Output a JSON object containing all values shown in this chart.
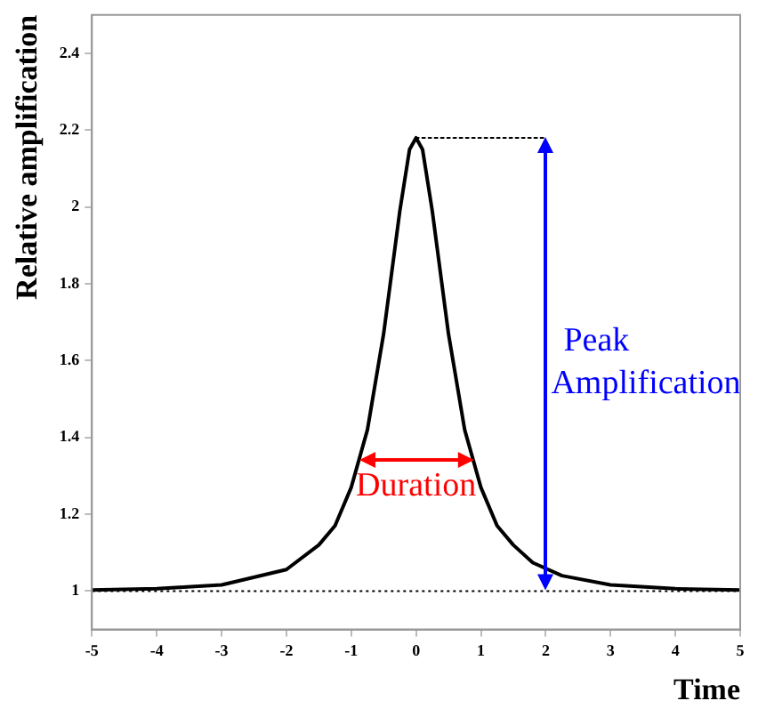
{
  "chart_data": {
    "type": "line",
    "xlabel": "Time",
    "ylabel": "Relative amplification",
    "x": [
      -5,
      -4,
      -3,
      -2,
      -1.5,
      -1.25,
      -1,
      -0.75,
      -0.5,
      -0.25,
      -0.1,
      0,
      0.1,
      0.25,
      0.5,
      0.75,
      1,
      1.25,
      1.5,
      1.8,
      2.25,
      3,
      4,
      5
    ],
    "series": [
      {
        "color": "#000000",
        "values": [
          1.003,
          1.006,
          1.016,
          1.056,
          1.12,
          1.17,
          1.27,
          1.42,
          1.67,
          1.99,
          2.15,
          2.18,
          2.15,
          1.99,
          1.67,
          1.42,
          1.27,
          1.17,
          1.12,
          1.074,
          1.04,
          1.016,
          1.006,
          1.003
        ]
      },
      {
        "color": "#000000",
        "x": [
          0,
          2
        ],
        "values": [
          2.18,
          2.18
        ],
        "line_style": "dotted"
      }
    ],
    "xlim": [
      -5,
      5
    ],
    "xticks": [
      -5,
      -4,
      -3,
      -2,
      -1,
      0,
      1,
      2,
      3,
      4,
      5
    ],
    "ylim": [
      0.9,
      2.5
    ],
    "yticks": [
      1,
      1.2,
      1.4,
      1.6,
      1.8,
      2,
      2.2,
      2.4
    ],
    "grid": false,
    "legend": false,
    "marker": "none",
    "line_style": "solid",
    "ref_lines": [
      {
        "axis": "y",
        "value": 1,
        "line_style": "dotted",
        "color": "#000000"
      }
    ],
    "annotations": [
      "Peak\nAmplification",
      "Duration"
    ]
  }
}
